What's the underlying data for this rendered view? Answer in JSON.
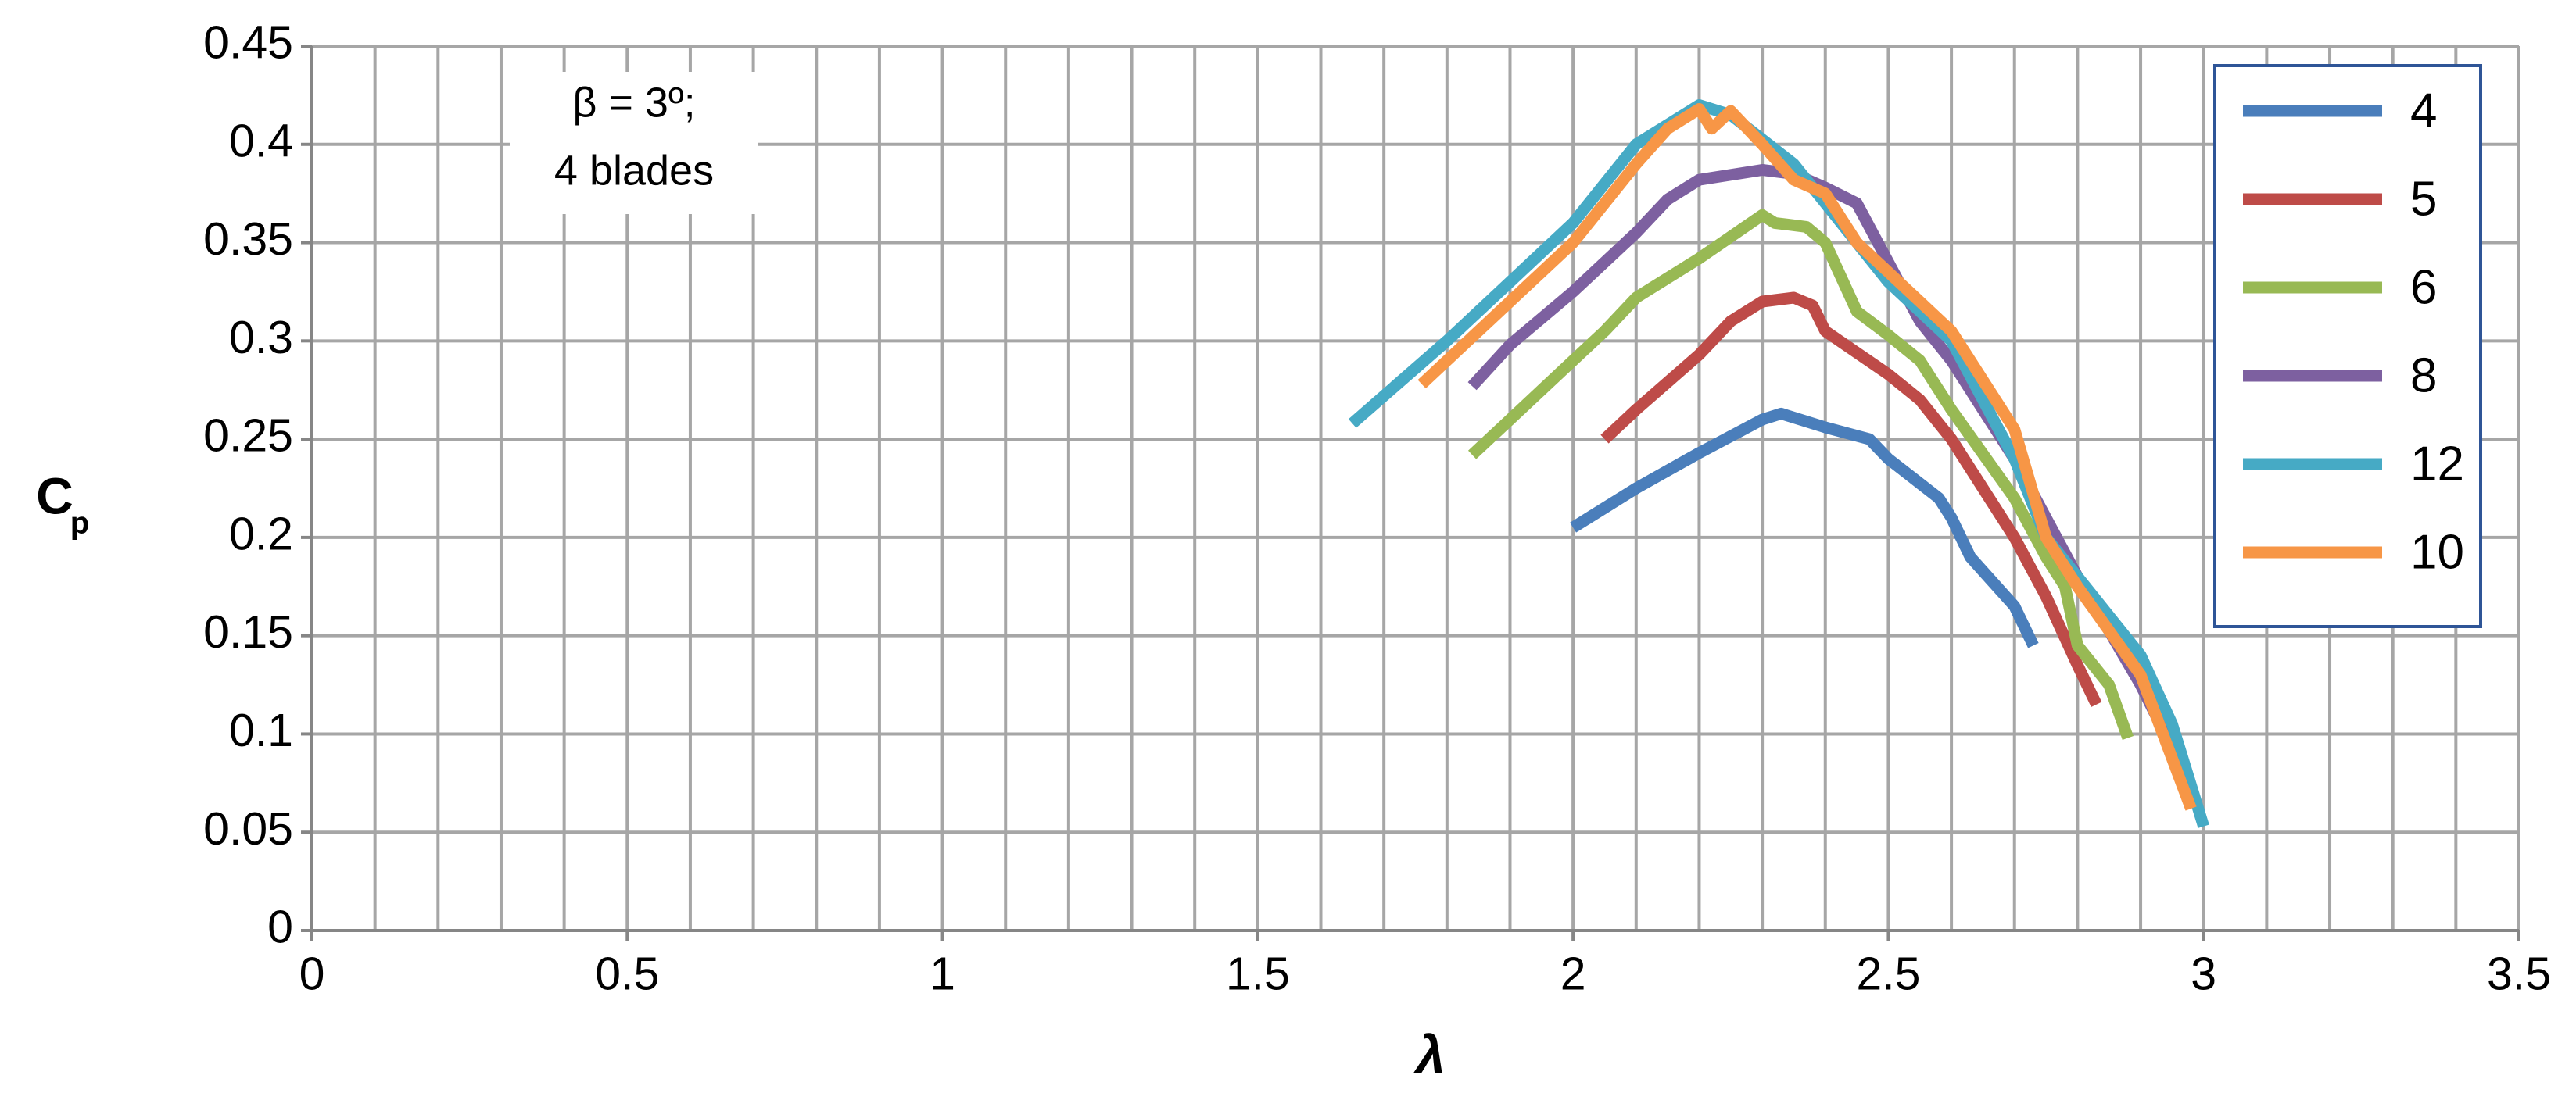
{
  "chart_data": {
    "type": "line",
    "x_label": "λ",
    "y_label": "C",
    "y_label_subscript": "p",
    "annotation": [
      "β = 3º;",
      "4 blades"
    ],
    "xlim": [
      0,
      3.5
    ],
    "ylim": [
      0,
      0.45
    ],
    "xticks": [
      0,
      0.5,
      1,
      1.5,
      2,
      2.5,
      3,
      3.5
    ],
    "yticks": [
      0,
      0.05,
      0.1,
      0.15,
      0.2,
      0.25,
      0.3,
      0.35,
      0.4,
      0.45
    ],
    "xgrid": [
      0.1,
      0.2,
      0.3,
      0.4,
      0.6,
      0.7,
      0.8,
      0.9,
      1.1,
      1.2,
      1.3,
      1.4,
      1.6,
      1.7,
      1.8,
      1.9,
      2.1,
      2.2,
      2.3,
      2.4,
      2.6,
      2.7,
      2.8,
      2.9,
      3.1,
      3.2,
      3.3,
      3.4
    ],
    "grid": true,
    "legend": "top-right",
    "series": [
      {
        "name": "4",
        "color": "#4a7ebb",
        "x": [
          2.0,
          2.1,
          2.2,
          2.3,
          2.33,
          2.4,
          2.47,
          2.5,
          2.58,
          2.6,
          2.63,
          2.7,
          2.73
        ],
        "values": [
          0.205,
          0.225,
          0.243,
          0.26,
          0.263,
          0.256,
          0.25,
          0.24,
          0.22,
          0.21,
          0.19,
          0.165,
          0.145
        ]
      },
      {
        "name": "5",
        "color": "#be4b48",
        "x": [
          2.05,
          2.1,
          2.2,
          2.25,
          2.3,
          2.35,
          2.38,
          2.4,
          2.5,
          2.55,
          2.6,
          2.7,
          2.75,
          2.8,
          2.83
        ],
        "values": [
          0.25,
          0.265,
          0.293,
          0.31,
          0.32,
          0.322,
          0.318,
          0.305,
          0.283,
          0.27,
          0.25,
          0.2,
          0.17,
          0.135,
          0.115
        ]
      },
      {
        "name": "6",
        "color": "#98b954",
        "x": [
          1.84,
          1.9,
          2.0,
          2.05,
          2.1,
          2.2,
          2.3,
          2.32,
          2.37,
          2.4,
          2.45,
          2.5,
          2.55,
          2.6,
          2.7,
          2.75,
          2.78,
          2.8,
          2.85,
          2.88
        ],
        "values": [
          0.242,
          0.26,
          0.29,
          0.305,
          0.322,
          0.342,
          0.364,
          0.36,
          0.358,
          0.35,
          0.315,
          0.303,
          0.29,
          0.265,
          0.22,
          0.19,
          0.175,
          0.145,
          0.125,
          0.098
        ]
      },
      {
        "name": "8",
        "color": "#7d60a0",
        "x": [
          1.84,
          1.9,
          2.0,
          2.1,
          2.15,
          2.2,
          2.3,
          2.35,
          2.4,
          2.45,
          2.5,
          2.55,
          2.6,
          2.7,
          2.8,
          2.9,
          2.97
        ],
        "values": [
          0.277,
          0.298,
          0.325,
          0.355,
          0.372,
          0.382,
          0.387,
          0.385,
          0.378,
          0.37,
          0.34,
          0.31,
          0.29,
          0.24,
          0.18,
          0.125,
          0.08
        ]
      },
      {
        "name": "12",
        "color": "#46aac5",
        "x": [
          1.65,
          1.8,
          1.9,
          2.0,
          2.05,
          2.1,
          2.2,
          2.25,
          2.35,
          2.4,
          2.5,
          2.6,
          2.7,
          2.75,
          2.8,
          2.9,
          2.95,
          3.0
        ],
        "values": [
          0.258,
          0.3,
          0.33,
          0.36,
          0.38,
          0.4,
          0.42,
          0.415,
          0.39,
          0.37,
          0.33,
          0.3,
          0.24,
          0.2,
          0.18,
          0.14,
          0.105,
          0.053
        ]
      },
      {
        "name": "10",
        "color": "#f79646",
        "x": [
          1.76,
          1.9,
          2.0,
          2.1,
          2.15,
          2.2,
          2.22,
          2.25,
          2.3,
          2.35,
          2.4,
          2.45,
          2.5,
          2.6,
          2.7,
          2.75,
          2.8,
          2.9,
          2.98
        ],
        "values": [
          0.278,
          0.32,
          0.35,
          0.39,
          0.408,
          0.418,
          0.408,
          0.417,
          0.4,
          0.382,
          0.375,
          0.35,
          0.335,
          0.305,
          0.255,
          0.2,
          0.175,
          0.13,
          0.062
        ]
      }
    ]
  }
}
